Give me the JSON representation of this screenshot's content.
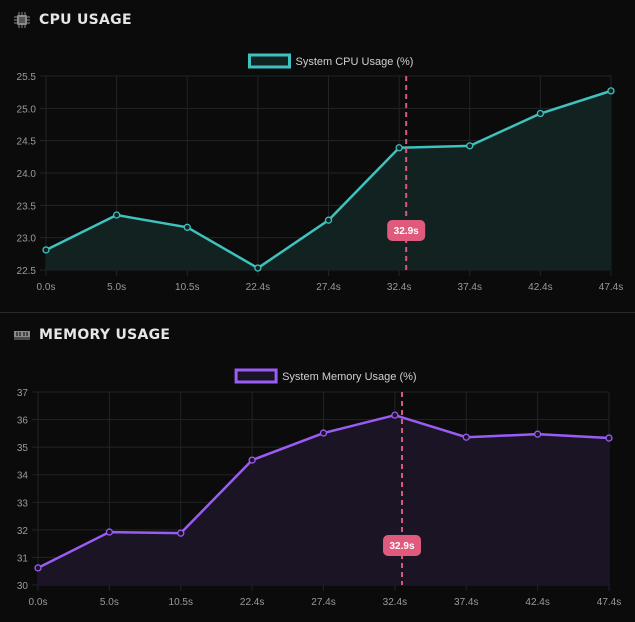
{
  "cpu": {
    "title": "CPU USAGE",
    "icon": "cpu-chip-icon"
  },
  "memory": {
    "title": "MEMORY USAGE",
    "icon": "memory-module-icon"
  },
  "crosshair_label": "32.9s",
  "chart_data": [
    {
      "type": "area",
      "categories": [
        "0.0s",
        "5.0s",
        "10.5s",
        "22.4s",
        "27.4s",
        "32.4s",
        "37.4s",
        "42.4s",
        "47.4s"
      ],
      "series": [
        {
          "name": "System CPU Usage (%)",
          "values": [
            22.81,
            23.35,
            23.16,
            22.53,
            23.27,
            24.39,
            24.42,
            24.92,
            25.27
          ]
        }
      ],
      "ylim": [
        22.5,
        25.5
      ],
      "yticks": [
        "22.5",
        "23.0",
        "23.5",
        "24.0",
        "24.5",
        "25.0",
        "25.5"
      ],
      "grid": true,
      "legend": "top-center",
      "color": "#3fc1bd",
      "fill": "#122221",
      "crosshair": {
        "x": "32.9s",
        "between": [
          5,
          6
        ],
        "fraction": 0.1
      }
    },
    {
      "type": "area",
      "categories": [
        "0.0s",
        "5.0s",
        "10.5s",
        "22.4s",
        "27.4s",
        "32.4s",
        "37.4s",
        "42.4s",
        "47.4s"
      ],
      "series": [
        {
          "name": "System Memory Usage (%)",
          "values": [
            30.62,
            31.92,
            31.88,
            34.53,
            35.51,
            36.16,
            35.36,
            35.47,
            35.33
          ]
        }
      ],
      "ylim": [
        30,
        37
      ],
      "yticks": [
        "30",
        "31",
        "32",
        "33",
        "34",
        "35",
        "36",
        "37"
      ],
      "grid": true,
      "legend": "top-center",
      "color": "#9b5cf6",
      "fill": "#1a1424",
      "crosshair": {
        "x": "32.9s",
        "between": [
          5,
          6
        ],
        "fraction": 0.1
      }
    }
  ]
}
